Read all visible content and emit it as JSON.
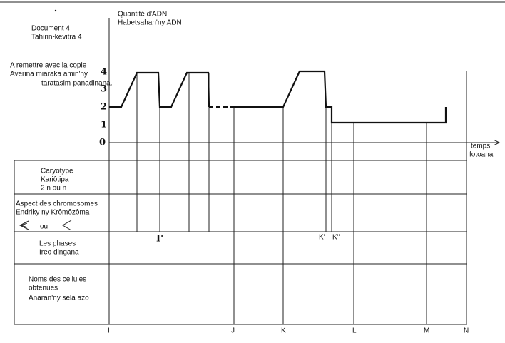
{
  "header": {
    "lines": [
      "Document 4",
      "Tahirin-kevitra 4"
    ]
  },
  "note": {
    "lines": [
      "A remettre avec la copie",
      "Averina miaraka amin'ny",
      "taratasim-panadinana."
    ]
  },
  "y_axis": {
    "title_lines": [
      "Quantité d'ADN",
      "Habetsahan'ny ADN"
    ],
    "ticks": [
      "4",
      "3",
      "2",
      "1",
      "0"
    ]
  },
  "x_axis": {
    "title_lines": [
      "temps",
      "fotoana"
    ],
    "labels": [
      "I",
      "J",
      "K",
      "L",
      "M",
      "N"
    ]
  },
  "markers": [
    "I'",
    "K'",
    "K''"
  ],
  "rows": [
    {
      "lines": [
        "Caryotype",
        "Kariôtipa",
        "2 n ou n"
      ]
    },
    {
      "lines": [
        "Aspect des chromosomes",
        "Endriky ny Krômôzôma"
      ],
      "symbols": [
        "ou"
      ]
    },
    {
      "lines": [
        "Les phases",
        "Ireo dingana"
      ]
    },
    {
      "lines": [
        "Noms des cellules",
        "obtenues",
        "Anaran'ny sela azo"
      ]
    }
  ]
}
